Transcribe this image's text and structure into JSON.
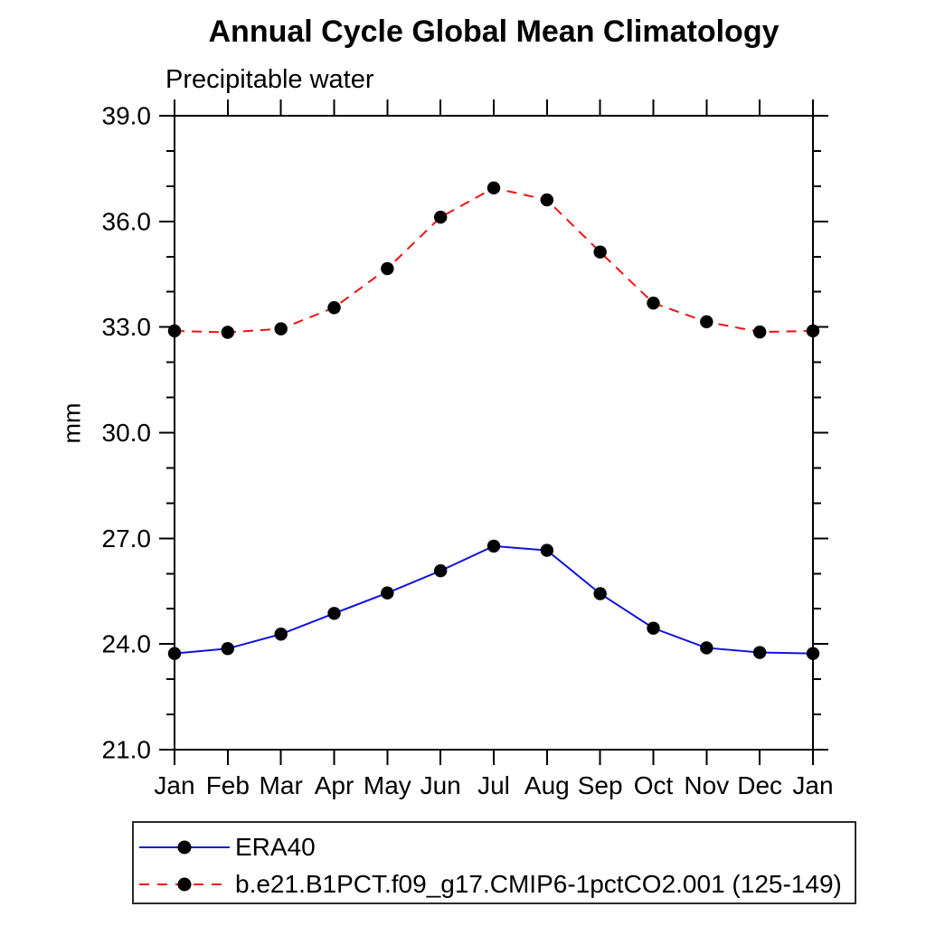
{
  "chart_data": {
    "type": "line",
    "title": "Annual Cycle Global Mean Climatology",
    "subtitle": "Precipitable water",
    "ylabel": "mm",
    "xlabel": "",
    "categories": [
      "Jan",
      "Feb",
      "Mar",
      "Apr",
      "May",
      "Jun",
      "Jul",
      "Aug",
      "Sep",
      "Oct",
      "Nov",
      "Dec",
      "Jan"
    ],
    "ylim": [
      21.0,
      39.0
    ],
    "ytick_major_step": 3.0,
    "ytick_minor_step": 1.0,
    "ytick_labels": [
      "21.0",
      "24.0",
      "27.0",
      "30.0",
      "33.0",
      "36.0",
      "39.0"
    ],
    "grid": false,
    "legend_position": "bottom-left-box",
    "series": [
      {
        "name": "ERA40",
        "color": "#1212e0",
        "line_style": "solid",
        "marker": "filled-circle",
        "marker_color": "#000000",
        "values": [
          23.73,
          23.87,
          24.28,
          24.87,
          25.45,
          26.08,
          26.78,
          26.66,
          25.43,
          24.45,
          23.89,
          23.76,
          23.73
        ]
      },
      {
        "name": "b.e21.B1PCT.f09_g17.CMIP6-1pctCO2.001 (125-149)",
        "color": "#f01212",
        "line_style": "dashed",
        "marker": "filled-circle",
        "marker_color": "#000000",
        "values": [
          32.89,
          32.85,
          32.95,
          33.55,
          34.66,
          36.12,
          36.95,
          36.61,
          35.13,
          33.68,
          33.15,
          32.86,
          32.89
        ]
      }
    ]
  },
  "colors": {
    "background": "#ffffff",
    "text": "#000000",
    "axis": "#000000"
  }
}
